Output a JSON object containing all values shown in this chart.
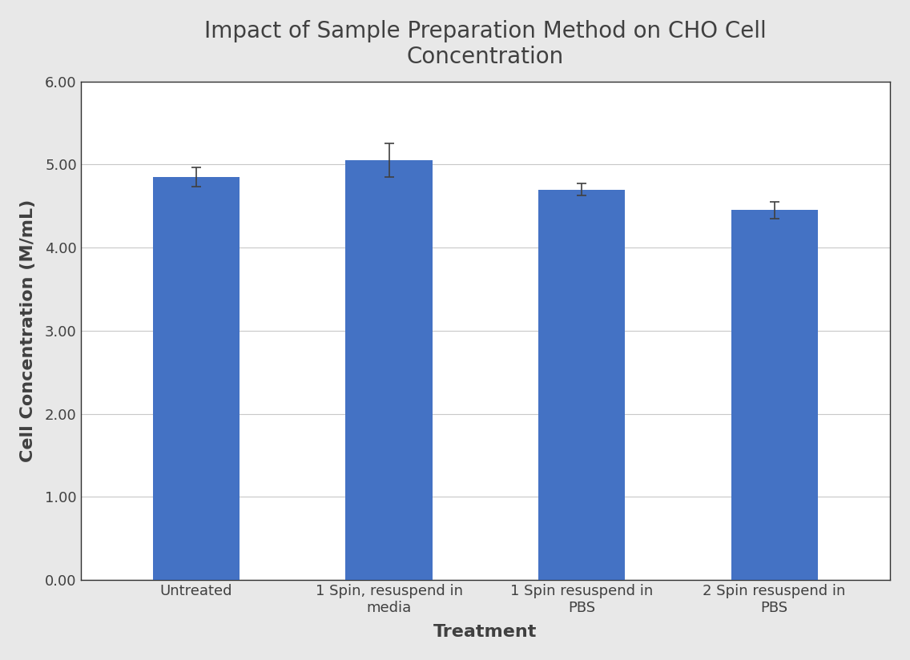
{
  "title": "Impact of Sample Preparation Method on CHO Cell\nConcentration",
  "xlabel": "Treatment",
  "ylabel": "Cell Concentration (M/mL)",
  "categories": [
    "Untreated",
    "1 Spin, resuspend in\nmedia",
    "1 Spin resuspend in\nPBS",
    "2 Spin resuspend in\nPBS"
  ],
  "values": [
    4.85,
    5.05,
    4.7,
    4.45
  ],
  "errors": [
    0.12,
    0.2,
    0.07,
    0.1
  ],
  "bar_color": "#4472C4",
  "ylim": [
    0.0,
    6.0
  ],
  "yticks": [
    0.0,
    1.0,
    2.0,
    3.0,
    4.0,
    5.0,
    6.0
  ],
  "figure_bg_color": "#e8e8e8",
  "plot_bg_color": "#ffffff",
  "grid_color": "#c8c8c8",
  "text_color": "#404040",
  "title_fontsize": 20,
  "axis_label_fontsize": 16,
  "tick_fontsize": 13,
  "bar_width": 0.45,
  "spine_color": "#303030"
}
